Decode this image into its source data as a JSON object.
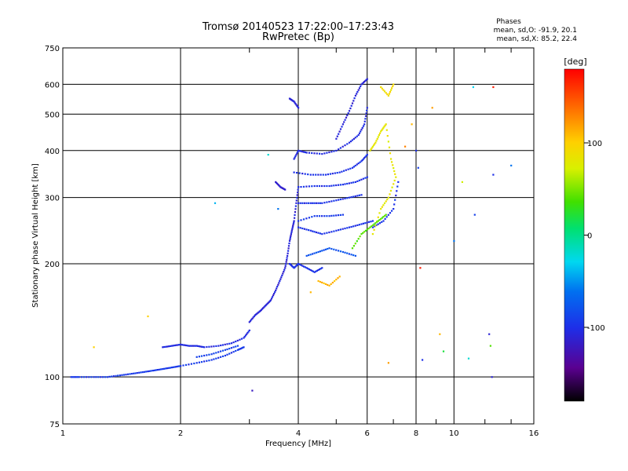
{
  "chart_data": {
    "type": "scatter",
    "title": "Tromsø 20140523 17:22:00–17:23:43",
    "subtitle": "RwPretec (Bp)",
    "header_stats": {
      "title": "Phases",
      "line_o": "mean, sd,O: -91.9, 20.1",
      "line_x": "mean, sd,X: 85.2, 22.4"
    },
    "xlabel": "Frequency [MHz]",
    "ylabel": "Stationary phase Virtual Height [km]",
    "x_scale": "log",
    "y_scale": "log",
    "xlim": [
      1,
      16
    ],
    "ylim": [
      75,
      750
    ],
    "xticks": [
      1,
      2,
      4,
      6,
      8,
      10,
      16
    ],
    "xtick_labels": [
      "1",
      "2",
      "4",
      "6",
      "8",
      "10",
      "16"
    ],
    "yticks": [
      75,
      100,
      200,
      300,
      400,
      500,
      600,
      750
    ],
    "ytick_labels": [
      "75",
      "100",
      "200",
      "300",
      "400",
      "500",
      "600",
      "750"
    ],
    "x_minor_ticks": [
      3,
      5,
      7,
      9,
      12,
      14
    ],
    "grid": true,
    "colorbar": {
      "label": "[deg]",
      "range": [
        -180,
        180
      ],
      "ticks": [
        100,
        0,
        -100
      ],
      "tick_labels": [
        "100",
        "0",
        "-100"
      ]
    },
    "traces": [
      {
        "phase": -95,
        "points": [
          [
            1.05,
            100
          ],
          [
            1.1,
            100
          ],
          [
            1.2,
            100
          ],
          [
            1.3,
            100
          ],
          [
            1.4,
            101
          ],
          [
            1.5,
            102
          ],
          [
            1.6,
            103
          ],
          [
            1.7,
            104
          ],
          [
            1.8,
            105
          ],
          [
            1.9,
            106
          ],
          [
            2.0,
            107
          ],
          [
            2.2,
            109
          ],
          [
            2.4,
            111
          ],
          [
            2.6,
            114
          ],
          [
            2.8,
            118
          ],
          [
            2.9,
            120
          ]
        ]
      },
      {
        "phase": -105,
        "points": [
          [
            1.8,
            120
          ],
          [
            1.9,
            121
          ],
          [
            2.0,
            122
          ],
          [
            2.1,
            121
          ],
          [
            2.2,
            121
          ],
          [
            2.3,
            120
          ],
          [
            2.5,
            121
          ],
          [
            2.7,
            123
          ],
          [
            2.9,
            127
          ],
          [
            3.0,
            133
          ]
        ]
      },
      {
        "phase": -90,
        "points": [
          [
            2.2,
            113
          ],
          [
            2.4,
            115
          ],
          [
            2.6,
            118
          ],
          [
            2.8,
            121
          ]
        ]
      },
      {
        "phase": -110,
        "points": [
          [
            3.0,
            140
          ],
          [
            3.1,
            146
          ],
          [
            3.2,
            150
          ],
          [
            3.3,
            155
          ],
          [
            3.4,
            160
          ],
          [
            3.5,
            170
          ],
          [
            3.6,
            182
          ],
          [
            3.7,
            195
          ],
          [
            3.75,
            210
          ],
          [
            3.8,
            230
          ],
          [
            3.85,
            245
          ],
          [
            3.9,
            260
          ],
          [
            3.95,
            290
          ],
          [
            4.0,
            320
          ]
        ]
      },
      {
        "phase": -115,
        "points": [
          [
            3.5,
            330
          ],
          [
            3.6,
            320
          ],
          [
            3.7,
            315
          ]
        ]
      },
      {
        "phase": -100,
        "points": [
          [
            3.8,
            200
          ],
          [
            3.9,
            195
          ],
          [
            4.0,
            200
          ],
          [
            4.2,
            195
          ],
          [
            4.4,
            190
          ],
          [
            4.6,
            195
          ]
        ]
      },
      {
        "phase": -100,
        "points": [
          [
            4.0,
            250
          ],
          [
            4.3,
            245
          ],
          [
            4.6,
            240
          ],
          [
            5.0,
            245
          ],
          [
            5.4,
            250
          ],
          [
            5.8,
            255
          ],
          [
            6.2,
            260
          ]
        ]
      },
      {
        "phase": -100,
        "points": [
          [
            4.0,
            290
          ],
          [
            4.3,
            290
          ],
          [
            4.6,
            290
          ],
          [
            5.0,
            295
          ],
          [
            5.4,
            300
          ],
          [
            5.8,
            305
          ]
        ]
      },
      {
        "phase": -95,
        "points": [
          [
            4.0,
            260
          ],
          [
            4.4,
            268
          ],
          [
            4.8,
            268
          ],
          [
            5.2,
            270
          ]
        ]
      },
      {
        "phase": -100,
        "points": [
          [
            4.0,
            320
          ],
          [
            4.4,
            322
          ],
          [
            4.8,
            322
          ],
          [
            5.2,
            325
          ],
          [
            5.6,
            330
          ],
          [
            6.0,
            340
          ]
        ]
      },
      {
        "phase": -100,
        "points": [
          [
            3.9,
            350
          ],
          [
            4.3,
            345
          ],
          [
            4.7,
            345
          ],
          [
            5.1,
            350
          ],
          [
            5.5,
            360
          ],
          [
            5.8,
            375
          ],
          [
            6.0,
            390
          ]
        ]
      },
      {
        "phase": -105,
        "points": [
          [
            3.9,
            380
          ],
          [
            4.0,
            400
          ],
          [
            4.2,
            395
          ],
          [
            4.6,
            392
          ],
          [
            5.0,
            400
          ],
          [
            5.4,
            420
          ],
          [
            5.7,
            440
          ],
          [
            5.9,
            470
          ],
          [
            6.0,
            520
          ]
        ]
      },
      {
        "phase": -110,
        "points": [
          [
            5.0,
            430
          ],
          [
            5.2,
            470
          ],
          [
            5.4,
            510
          ],
          [
            5.6,
            560
          ],
          [
            5.8,
            600
          ],
          [
            6.0,
            620
          ]
        ]
      },
      {
        "phase": -110,
        "points": [
          [
            3.8,
            550
          ],
          [
            3.9,
            540
          ],
          [
            4.0,
            520
          ]
        ]
      },
      {
        "phase": -80,
        "points": [
          [
            4.2,
            210
          ],
          [
            4.5,
            215
          ],
          [
            4.8,
            220
          ],
          [
            5.2,
            215
          ],
          [
            5.6,
            210
          ]
        ]
      },
      {
        "phase": -100,
        "points": [
          [
            6.2,
            250
          ],
          [
            6.6,
            260
          ],
          [
            7.0,
            280
          ],
          [
            7.2,
            330
          ]
        ]
      },
      {
        "phase": 80,
        "points": [
          [
            6.1,
            400
          ],
          [
            6.3,
            420
          ],
          [
            6.5,
            450
          ],
          [
            6.7,
            470
          ],
          [
            6.9,
            380
          ],
          [
            7.1,
            340
          ],
          [
            6.8,
            300
          ],
          [
            6.5,
            280
          ],
          [
            6.2,
            240
          ]
        ]
      },
      {
        "phase": 40,
        "points": [
          [
            5.5,
            220
          ],
          [
            5.8,
            240
          ],
          [
            6.1,
            250
          ],
          [
            6.4,
            260
          ],
          [
            6.7,
            270
          ]
        ]
      },
      {
        "phase": 110,
        "points": [
          [
            4.5,
            180
          ],
          [
            4.8,
            175
          ],
          [
            5.1,
            185
          ]
        ]
      },
      {
        "phase": 90,
        "points": [
          [
            6.5,
            590
          ],
          [
            6.8,
            560
          ],
          [
            7.0,
            600
          ]
        ]
      }
    ],
    "scatter_points": [
      {
        "x": 1.2,
        "y": 120,
        "phase": 100
      },
      {
        "x": 1.65,
        "y": 145,
        "phase": 100
      },
      {
        "x": 2.45,
        "y": 290,
        "phase": -40
      },
      {
        "x": 3.05,
        "y": 92,
        "phase": -120
      },
      {
        "x": 3.35,
        "y": 390,
        "phase": -20
      },
      {
        "x": 3.55,
        "y": 280,
        "phase": -60
      },
      {
        "x": 4.3,
        "y": 168,
        "phase": 110
      },
      {
        "x": 6.8,
        "y": 109,
        "phase": 120
      },
      {
        "x": 7.8,
        "y": 470,
        "phase": 110
      },
      {
        "x": 7.5,
        "y": 410,
        "phase": 130
      },
      {
        "x": 8.0,
        "y": 400,
        "phase": -100
      },
      {
        "x": 8.1,
        "y": 360,
        "phase": -90
      },
      {
        "x": 8.2,
        "y": 195,
        "phase": 170
      },
      {
        "x": 8.3,
        "y": 111,
        "phase": -100
      },
      {
        "x": 8.8,
        "y": 520,
        "phase": 120
      },
      {
        "x": 9.2,
        "y": 130,
        "phase": 110
      },
      {
        "x": 9.4,
        "y": 117,
        "phase": 20
      },
      {
        "x": 10.0,
        "y": 230,
        "phase": -60
      },
      {
        "x": 10.5,
        "y": 330,
        "phase": 70
      },
      {
        "x": 10.9,
        "y": 112,
        "phase": -20
      },
      {
        "x": 11.2,
        "y": 590,
        "phase": -30
      },
      {
        "x": 11.3,
        "y": 270,
        "phase": -90
      },
      {
        "x": 12.3,
        "y": 130,
        "phase": -110
      },
      {
        "x": 12.4,
        "y": 121,
        "phase": 40
      },
      {
        "x": 12.5,
        "y": 100,
        "phase": -110
      },
      {
        "x": 12.6,
        "y": 345,
        "phase": -100
      },
      {
        "x": 12.6,
        "y": 590,
        "phase": 170
      },
      {
        "x": 14.0,
        "y": 365,
        "phase": -60
      }
    ]
  }
}
